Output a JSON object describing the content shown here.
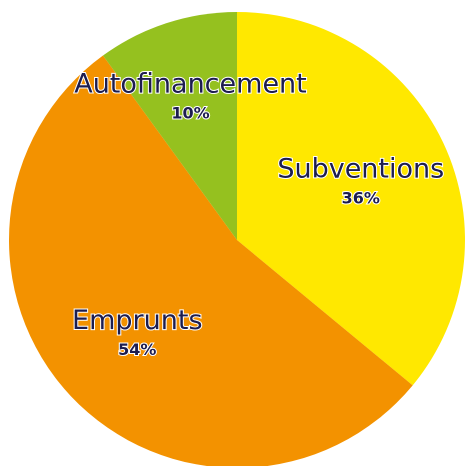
{
  "chart_data": {
    "type": "pie",
    "categories": [
      "Subventions",
      "Emprunts",
      "Autofinancement"
    ],
    "values": [
      36,
      54,
      10
    ],
    "value_labels": [
      "36%",
      "54%",
      "10%"
    ],
    "colors": [
      "#ffe800",
      "#f39200",
      "#95c11f"
    ]
  }
}
